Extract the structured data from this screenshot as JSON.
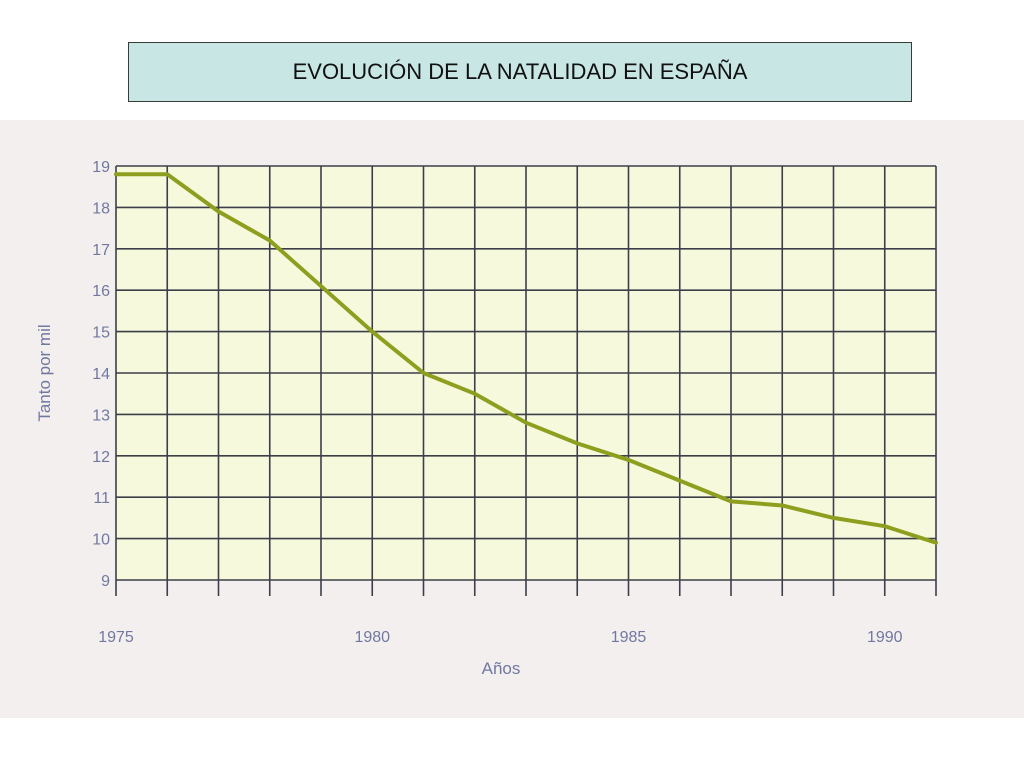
{
  "title": "EVOLUCIÓN DE LA NATALIDAD EN ESPAÑA",
  "chart_data": {
    "type": "line",
    "xlabel": "Años",
    "ylabel": "Tanto por mil",
    "xlim": [
      1975,
      1991
    ],
    "ylim": [
      9,
      19
    ],
    "xticks": [
      1975,
      1980,
      1985,
      1990
    ],
    "yticks": [
      9,
      10,
      11,
      12,
      13,
      14,
      15,
      16,
      17,
      18,
      19
    ],
    "grid": true,
    "series": [
      {
        "x": [
          1975,
          1976,
          1977,
          1978,
          1979,
          1980,
          1981,
          1982,
          1983,
          1984,
          1985,
          1986,
          1987,
          1988,
          1989,
          1990,
          1991
        ],
        "y": [
          18.8,
          18.8,
          17.9,
          17.2,
          16.1,
          15.0,
          14.0,
          13.5,
          12.8,
          12.3,
          11.9,
          11.4,
          10.9,
          10.8,
          10.5,
          10.3,
          9.9
        ]
      }
    ]
  },
  "colors": {
    "title_bg": "#c8e6e4",
    "panel_bg": "#f3efef",
    "plot_bg": "#f7f9dc",
    "grid": "#3c3e4a",
    "line": "#8e9e1e",
    "axis_text": "#7178a0"
  }
}
